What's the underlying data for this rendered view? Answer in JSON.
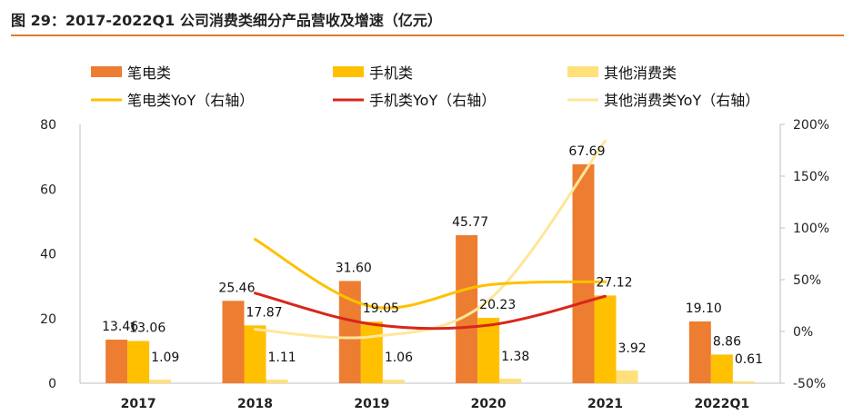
{
  "title": "图 29：2017-2022Q1 公司消费类细分产品营收及增速（亿元）",
  "colors": {
    "laptop": "#ed7d31",
    "phone": "#ffc000",
    "other": "#ffe07a",
    "laptop_yoy": "#ffc000",
    "phone_yoy": "#d9261c",
    "other_yoy": "#ffe699",
    "accent": "#e07a2f"
  },
  "chart_data": {
    "type": "bar",
    "categories": [
      "2017",
      "2018",
      "2019",
      "2020",
      "2021",
      "2022Q1"
    ],
    "series": [
      {
        "name": "笔电类",
        "kind": "bar",
        "values": [
          13.46,
          25.46,
          31.6,
          45.77,
          67.69,
          19.1
        ],
        "labels": [
          "13.46",
          "25.46",
          "31.60",
          "45.77",
          "67.69",
          "19.10"
        ]
      },
      {
        "name": "手机类",
        "kind": "bar",
        "values": [
          13.06,
          17.87,
          19.05,
          20.23,
          27.12,
          8.86
        ],
        "labels": [
          "13.06",
          "17.87",
          "19.05",
          "20.23",
          "27.12",
          "8.86"
        ]
      },
      {
        "name": "其他消费类",
        "kind": "bar",
        "values": [
          1.09,
          1.11,
          1.06,
          1.38,
          3.92,
          0.61
        ],
        "labels": [
          "1.09",
          "1.11",
          "1.06",
          "1.38",
          "3.92",
          "0.61"
        ]
      },
      {
        "name": "笔电类YoY（右轴）",
        "kind": "line",
        "axis": "right",
        "values": [
          null,
          89,
          24,
          45,
          48,
          null
        ]
      },
      {
        "name": "手机类YoY（右轴）",
        "kind": "line",
        "axis": "right",
        "values": [
          null,
          37,
          7,
          6,
          34,
          null
        ]
      },
      {
        "name": "其他消费类YoY（右轴）",
        "kind": "line",
        "axis": "right",
        "values": [
          null,
          2,
          -5,
          30,
          184,
          null
        ]
      }
    ],
    "y_left": {
      "min": 0,
      "max": 80,
      "ticks": [
        "0",
        "20",
        "40",
        "60",
        "80"
      ]
    },
    "y_right": {
      "min": -50,
      "max": 200,
      "ticks": [
        "-50%",
        "0%",
        "50%",
        "100%",
        "150%",
        "200%"
      ]
    },
    "legend": [
      "笔电类",
      "手机类",
      "其他消费类",
      "笔电类YoY（右轴）",
      "手机类YoY（右轴）",
      "其他消费类YoY（右轴）"
    ],
    "legend_position": "top",
    "grid": false
  }
}
